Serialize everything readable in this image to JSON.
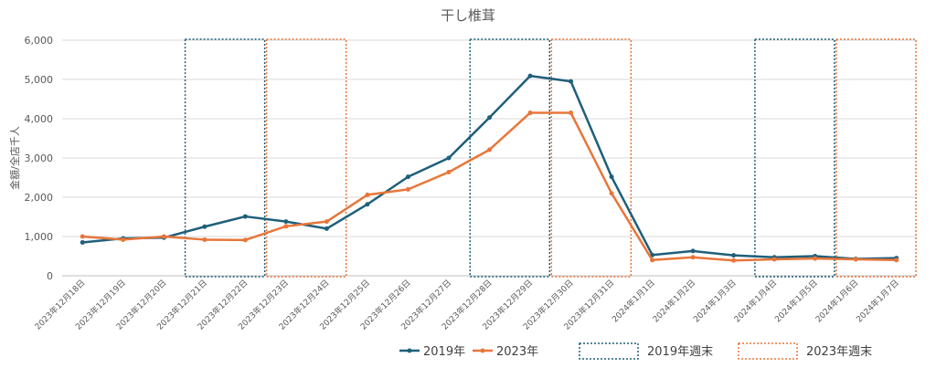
{
  "chart_data": {
    "type": "line",
    "title": "干し椎茸",
    "ylabel": "金額/全店千人",
    "xlabel": "",
    "ylim": [
      0,
      6000
    ],
    "yticks": [
      0,
      1000,
      2000,
      3000,
      4000,
      5000,
      6000
    ],
    "ytick_labels": [
      "0",
      "1,000",
      "2,000",
      "3,000",
      "4,000",
      "5,000",
      "6,000"
    ],
    "grid": true,
    "legend_position": "bottom",
    "categories": [
      "2023年12月18日",
      "2023年12月19日",
      "2023年12月20日",
      "2023年12月21日",
      "2023年12月22日",
      "2023年12月23日",
      "2023年12月24日",
      "2023年12月25日",
      "2023年12月26日",
      "2023年12月27日",
      "2023年12月28日",
      "2023年12月29日",
      "2023年12月30日",
      "2023年12月31日",
      "2024年1月1日",
      "2024年1月2日",
      "2024年1月3日",
      "2024年1月4日",
      "2024年1月5日",
      "2024年1月6日",
      "2024年1月7日"
    ],
    "series": [
      {
        "name": "2019年",
        "color": "#1f5f7a",
        "values": [
          850,
          950,
          970,
          1250,
          1510,
          1380,
          1200,
          1820,
          2520,
          3000,
          4030,
          5090,
          4950,
          2520,
          530,
          630,
          520,
          470,
          500,
          430,
          450
        ]
      },
      {
        "name": "2023年",
        "color": "#e8763a",
        "values": [
          1000,
          920,
          1000,
          920,
          910,
          1260,
          1380,
          2060,
          2200,
          2640,
          3210,
          4150,
          4150,
          2100,
          400,
          470,
          390,
          420,
          440,
          420,
          400
        ]
      }
    ],
    "weekend_boxes": [
      {
        "name": "2019年週末",
        "color": "#1f5f7a",
        "ranges": [
          [
            "2023年12月21日",
            "2023年12月22日"
          ],
          [
            "2023年12月28日",
            "2023年12月29日"
          ],
          [
            "2024年1月4日",
            "2024年1月5日"
          ]
        ]
      },
      {
        "name": "2023年週末",
        "color": "#e8763a",
        "ranges": [
          [
            "2023年12月23日",
            "2023年12月24日"
          ],
          [
            "2023年12月30日",
            "2023年12月31日"
          ],
          [
            "2024年1月6日",
            "2024年1月7日"
          ]
        ]
      }
    ]
  }
}
